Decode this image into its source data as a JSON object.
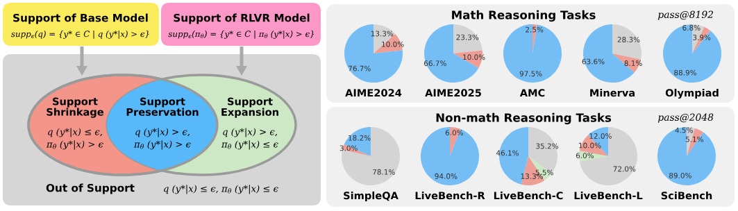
{
  "chart_data": [
    {
      "type": "other",
      "annotations": [
        "Support of Base Model",
        "supp$_{ϵ}$(q) = {y* ∈ C | q (y*|x) > ϵ}",
        "Support of RLVR Model",
        "supp$_{ϵ}$(π$_{θ}$) = {y* ∈ C | π$_{θ}$ (y*|x) > ϵ}",
        "Support\nShrinkage",
        "q (y*|x) ≤ ϵ,",
        "π$_{θ}$ (y*|x) > ϵ",
        "Support\nPreservation",
        "q (y*|x) > ϵ,",
        "π$_{θ}$ (y*|x) > ϵ",
        "Support\nExpansion",
        "q (y*|x) > ϵ,",
        "π$_{θ}$ (y*|x) ≤ ϵ",
        "Out of Support",
        "q (y*|x) ≤ ϵ, π$_{θ}$ (y*|x) ≤ ϵ"
      ]
    },
    {
      "type": "other",
      "title": "Math Reasoning Tasks",
      "annotations": [
        "pass@8192"
      ]
    },
    {
      "type": "pie",
      "title": "AIME2024",
      "categories": [
        null,
        null,
        null
      ],
      "values": [
        13.3,
        10.0,
        76.7
      ],
      "colors": [
        "#d4d4d4",
        "#ee9e95",
        "#75bdf5"
      ],
      "value_labels": [
        "13.3%",
        "10.0%",
        "76.7%"
      ]
    },
    {
      "type": "pie",
      "title": "AIME2025",
      "categories": [
        null,
        null,
        null
      ],
      "values": [
        23.3,
        10.0,
        66.7
      ],
      "colors": [
        "#d4d4d4",
        "#ee9e95",
        "#75bdf5"
      ],
      "value_labels": [
        "23.3%",
        "10.0%",
        "66.7%"
      ]
    },
    {
      "type": "pie",
      "title": "AMC",
      "categories": [
        null,
        null
      ],
      "values": [
        2.5,
        97.5
      ],
      "colors": [
        "#ee9e95",
        "#75bdf5"
      ],
      "value_labels": [
        "2.5%",
        "97.5%"
      ]
    },
    {
      "type": "pie",
      "title": "Minerva",
      "categories": [
        null,
        null,
        null
      ],
      "values": [
        28.3,
        8.1,
        63.6
      ],
      "colors": [
        "#d4d4d4",
        "#ee9e95",
        "#75bdf5"
      ],
      "value_labels": [
        "28.3%",
        "8.1%",
        "63.6%"
      ]
    },
    {
      "type": "pie",
      "title": "Olympiad",
      "categories": [
        null,
        null,
        null
      ],
      "values": [
        6.8,
        3.9,
        88.9
      ],
      "colors": [
        "#d4d4d4",
        "#ee9e95",
        "#75bdf5"
      ],
      "value_labels": [
        "6.8%",
        "3.9%",
        "88.9%"
      ]
    },
    {
      "type": "other",
      "title": "Non-math Reasoning Tasks",
      "annotations": [
        "pass@2048"
      ]
    },
    {
      "type": "pie",
      "title": "SimpleQA",
      "categories": [
        null,
        null,
        null
      ],
      "values": [
        78.1,
        3.0,
        18.2
      ],
      "colors": [
        "#d4d4d4",
        "#ee9e95",
        "#75bdf5"
      ],
      "value_labels": [
        "78.1%",
        "3.0%",
        "18.2%"
      ]
    },
    {
      "type": "pie",
      "title": "LiveBench-R",
      "categories": [
        null,
        null
      ],
      "values": [
        6.0,
        94.0
      ],
      "colors": [
        "#ee9e95",
        "#75bdf5"
      ],
      "value_labels": [
        "6.0%",
        "94.0%"
      ]
    },
    {
      "type": "pie",
      "title": "LiveBench-C",
      "categories": [
        null,
        null,
        null,
        null
      ],
      "values": [
        35.2,
        5.5,
        13.3,
        46.1
      ],
      "colors": [
        "#d4d4d4",
        "#cde8c4",
        "#ee9e95",
        "#75bdf5"
      ],
      "value_labels": [
        "35.2%",
        "5.5%",
        "13.3%",
        "46.1%"
      ]
    },
    {
      "type": "pie",
      "title": "LiveBench-L",
      "categories": [
        null,
        null,
        null,
        null
      ],
      "values": [
        72.0,
        6.0,
        10.0,
        12.0
      ],
      "colors": [
        "#d4d4d4",
        "#cde8c4",
        "#ee9e95",
        "#75bdf5"
      ],
      "value_labels": [
        "72.0%",
        "6.0%",
        "10.0%",
        "12.0%"
      ]
    },
    {
      "type": "pie",
      "title": "SciBench",
      "categories": [
        null,
        null,
        null
      ],
      "values": [
        4.5,
        5.1,
        89.0
      ],
      "colors": [
        "#d4d4d4",
        "#ee9e95",
        "#75bdf5"
      ],
      "value_labels": [
        "4.5%",
        "5.1%",
        "89.0%"
      ]
    }
  ]
}
